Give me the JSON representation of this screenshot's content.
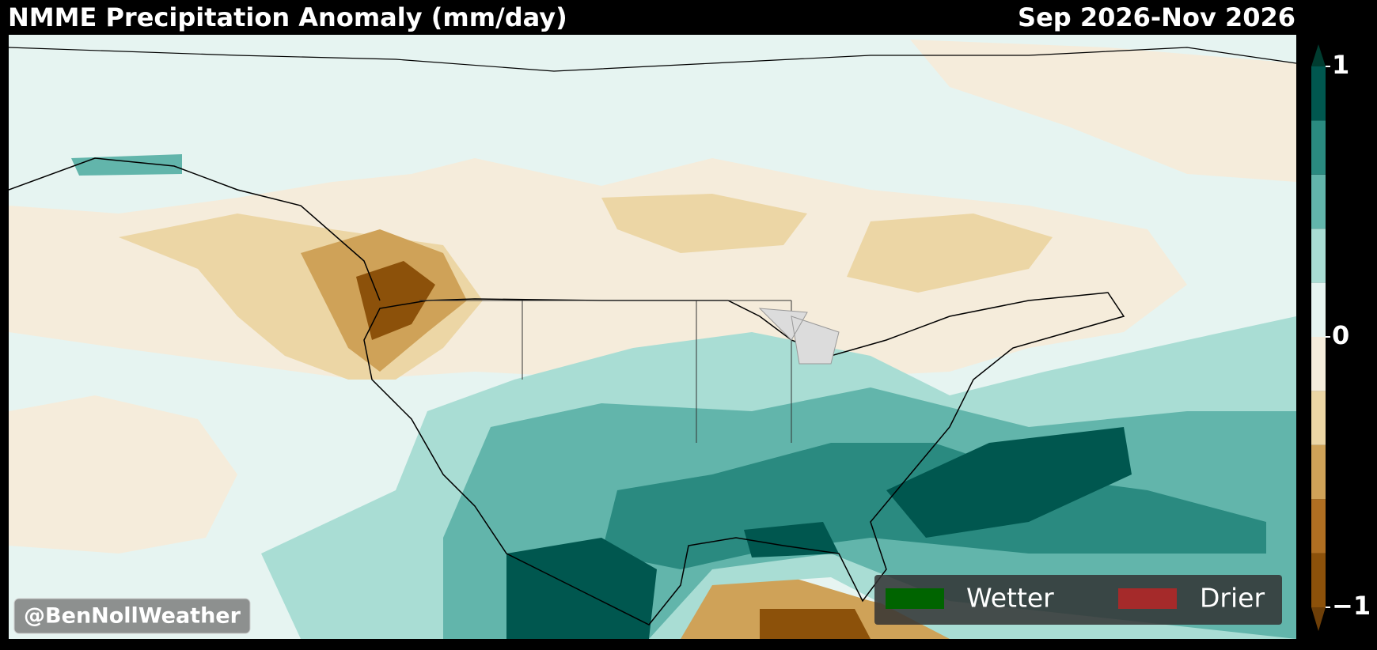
{
  "header": {
    "title": "NMME Precipitation Anomaly (mm/day)",
    "period": "Sep 2026-Nov 2026"
  },
  "colorbar": {
    "lim": [
      -1,
      1
    ],
    "ticks": [
      1,
      0,
      {
        "value": -1,
        "label": "−1"
      }
    ],
    "bounds": [
      -1,
      -0.8,
      -0.6,
      -0.4,
      -0.2,
      0,
      0.2,
      0.4,
      0.6,
      0.8,
      1
    ],
    "colors": [
      "#8c510a",
      "#b06f22",
      "#cfa258",
      "#ecd6a5",
      "#f5ecdb",
      "#e6f4f1",
      "#a9ddd4",
      "#62b5ab",
      "#2a8a80",
      "#00574f"
    ],
    "under_color": "#6e3f08",
    "over_color": "#003c30"
  },
  "legend": {
    "items": [
      {
        "label": "Wetter",
        "color": "#006400"
      },
      {
        "label": "Drier",
        "color": "#a52a2a"
      }
    ]
  },
  "watermark": "@BenNollWeather"
}
